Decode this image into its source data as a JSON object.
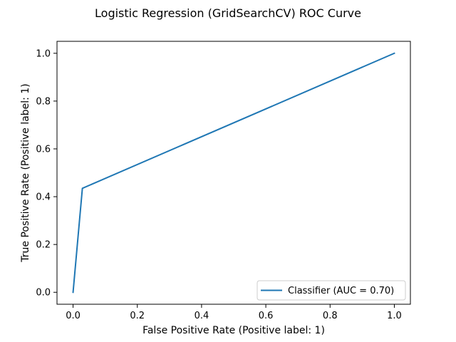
{
  "chart_data": {
    "type": "line",
    "title": "Logistic Regression (GridSearchCV) ROC Curve",
    "xlabel": "False Positive Rate (Positive label: 1)",
    "ylabel": "True Positive Rate (Positive label: 1)",
    "xlim": [
      -0.05,
      1.05
    ],
    "ylim": [
      -0.05,
      1.05
    ],
    "xticks": [
      "0.0",
      "0.2",
      "0.4",
      "0.6",
      "0.8",
      "1.0"
    ],
    "yticks": [
      "0.0",
      "0.2",
      "0.4",
      "0.6",
      "0.8",
      "1.0"
    ],
    "grid": false,
    "legend_position": "lower-right",
    "series": [
      {
        "name": "Classifier (AUC = 0.70)",
        "color": "#1f77b4",
        "x": [
          0.0,
          0.029,
          1.0
        ],
        "y": [
          0.0,
          0.435,
          1.0
        ]
      }
    ]
  }
}
